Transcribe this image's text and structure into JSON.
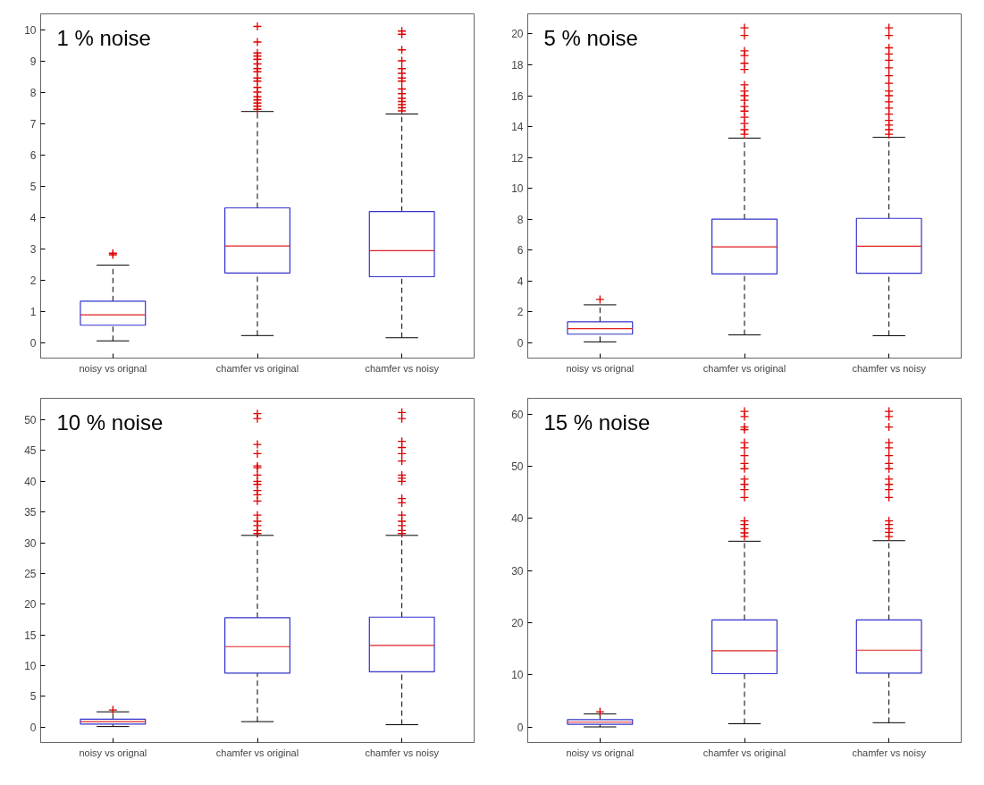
{
  "chart_data": [
    {
      "type": "box",
      "annotations": [
        "1 % noise"
      ],
      "categories": [
        "noisy vs orignal",
        "chamfer vs original",
        "chamfer vs noisy"
      ],
      "ylim": [
        -0.5,
        10.5
      ],
      "yticks": [
        0,
        1,
        2,
        3,
        4,
        5,
        6,
        7,
        8,
        9,
        10
      ],
      "grid": false,
      "marker": "cross",
      "boxes": [
        {
          "low": 0.05,
          "q1": 0.55,
          "median": 0.88,
          "q3": 1.32,
          "high": 2.47,
          "outliers": [
            2.8,
            2.85
          ]
        },
        {
          "low": 0.22,
          "q1": 2.22,
          "median": 3.08,
          "q3": 4.3,
          "high": 7.38,
          "outliers": [
            7.45,
            7.55,
            7.65,
            7.75,
            7.85,
            8.0,
            8.15,
            8.35,
            8.45,
            8.65,
            8.75,
            8.9,
            9.05,
            9.15,
            9.25,
            9.6,
            10.1
          ]
        },
        {
          "low": 0.15,
          "q1": 2.1,
          "median": 2.93,
          "q3": 4.18,
          "high": 7.3,
          "outliers": [
            7.4,
            7.5,
            7.6,
            7.7,
            7.8,
            7.95,
            8.1,
            8.35,
            8.45,
            8.6,
            8.75,
            9.0,
            9.35,
            9.85,
            9.95
          ]
        }
      ]
    },
    {
      "type": "box",
      "annotations": [
        "5 % noise"
      ],
      "categories": [
        "noisy vs orignal",
        "chamfer vs original",
        "chamfer vs noisy"
      ],
      "ylim": [
        -1,
        21.3
      ],
      "yticks": [
        0,
        2,
        4,
        6,
        8,
        10,
        12,
        14,
        16,
        18,
        20
      ],
      "grid": false,
      "marker": "cross",
      "boxes": [
        {
          "low": 0.05,
          "q1": 0.55,
          "median": 0.9,
          "q3": 1.35,
          "high": 2.45,
          "outliers": [
            2.8
          ]
        },
        {
          "low": 0.5,
          "q1": 4.45,
          "median": 6.2,
          "q3": 8.0,
          "high": 13.25,
          "outliers": [
            13.5,
            13.8,
            14.2,
            14.6,
            15.0,
            15.3,
            15.7,
            16.0,
            16.3,
            16.7,
            17.7,
            18.1,
            18.6,
            18.9,
            19.9,
            20.4
          ]
        },
        {
          "low": 0.45,
          "q1": 4.5,
          "median": 6.25,
          "q3": 8.05,
          "high": 13.3,
          "outliers": [
            13.5,
            13.8,
            14.1,
            14.4,
            14.8,
            15.2,
            15.6,
            16.0,
            16.3,
            16.8,
            17.3,
            17.8,
            18.3,
            18.7,
            19.1,
            19.9,
            20.4
          ]
        }
      ]
    },
    {
      "type": "box",
      "annotations": [
        "10 % noise"
      ],
      "categories": [
        "noisy vs orignal",
        "chamfer vs original",
        "chamfer vs noisy"
      ],
      "ylim": [
        -2.5,
        53.5
      ],
      "yticks": [
        0,
        5,
        10,
        15,
        20,
        25,
        30,
        35,
        40,
        45,
        50
      ],
      "grid": false,
      "marker": "cross",
      "boxes": [
        {
          "low": 0.1,
          "q1": 0.5,
          "median": 0.9,
          "q3": 1.3,
          "high": 2.5,
          "outliers": [
            2.8
          ]
        },
        {
          "low": 0.9,
          "q1": 8.8,
          "median": 13.1,
          "q3": 17.8,
          "high": 31.2,
          "outliers": [
            31.5,
            32.0,
            32.8,
            33.5,
            34.5,
            36.8,
            37.8,
            38.5,
            39.5,
            40.0,
            41.0,
            42.2,
            42.5,
            44.5,
            46.0,
            50.2,
            51.0
          ]
        },
        {
          "low": 0.4,
          "q1": 9.0,
          "median": 13.3,
          "q3": 17.9,
          "high": 31.2,
          "outliers": [
            31.5,
            32.0,
            32.8,
            33.5,
            34.5,
            36.5,
            37.2,
            40.0,
            40.5,
            41.0,
            43.3,
            44.5,
            45.5,
            46.5,
            50.2,
            51.2
          ]
        }
      ]
    },
    {
      "type": "box",
      "annotations": [
        "15 % noise"
      ],
      "categories": [
        "noisy vs orignal",
        "chamfer vs original",
        "chamfer vs noisy"
      ],
      "ylim": [
        -3,
        63
      ],
      "yticks": [
        0,
        10,
        20,
        30,
        40,
        50,
        60
      ],
      "grid": false,
      "marker": "cross",
      "boxes": [
        {
          "low": 0.0,
          "q1": 0.5,
          "median": 0.9,
          "q3": 1.4,
          "high": 2.5,
          "outliers": [
            2.9
          ]
        },
        {
          "low": 0.6,
          "q1": 10.2,
          "median": 14.6,
          "q3": 20.5,
          "high": 35.6,
          "outliers": [
            36.5,
            37.2,
            38.0,
            38.8,
            39.5,
            44.0,
            45.5,
            46.5,
            47.5,
            49.5,
            50.5,
            52.0,
            53.5,
            54.5,
            57.0,
            57.5,
            59.5,
            60.5
          ]
        },
        {
          "low": 0.8,
          "q1": 10.3,
          "median": 14.7,
          "q3": 20.5,
          "high": 35.7,
          "outliers": [
            36.5,
            37.3,
            38.0,
            38.8,
            39.5,
            44.0,
            45.5,
            46.5,
            47.5,
            49.5,
            50.5,
            52.0,
            53.5,
            54.5,
            57.5,
            59.5,
            60.5
          ]
        }
      ]
    }
  ]
}
